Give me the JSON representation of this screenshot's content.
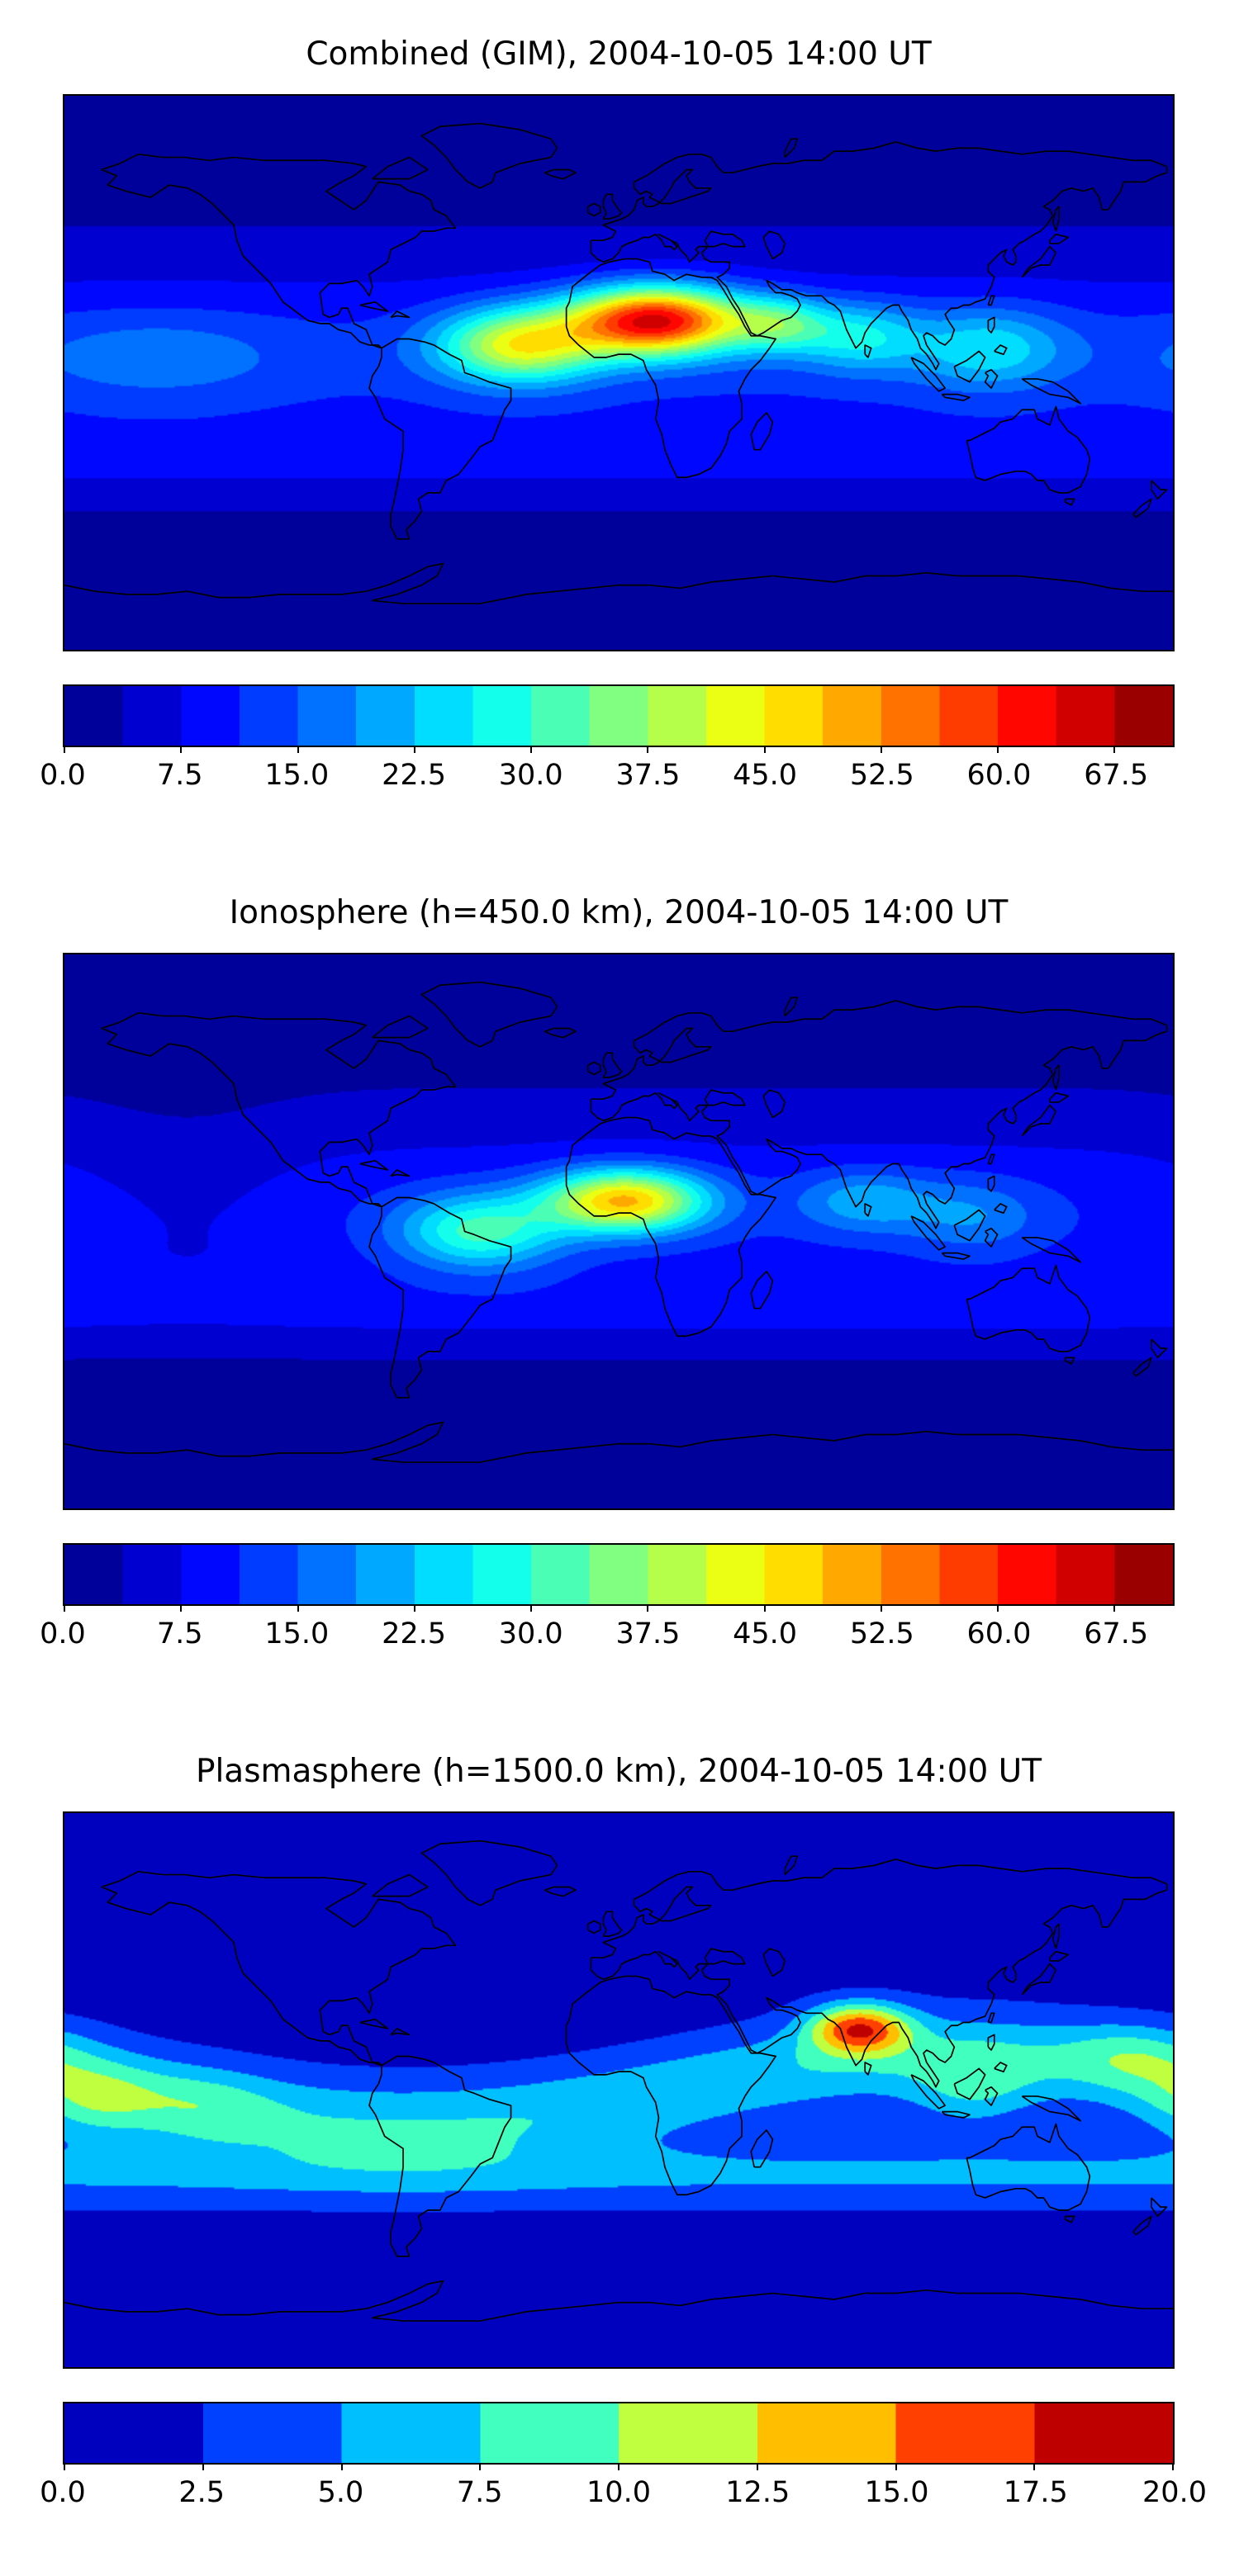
{
  "figure": {
    "background": "#ffffff",
    "text_color": "#000000"
  },
  "chart_data": [
    {
      "type": "heatmap",
      "title": "Combined (GIM), 2004-10-05 14:00 UT",
      "projection": "equirectangular",
      "extent": {
        "lon": [
          -180,
          180
        ],
        "lat": [
          -90,
          90
        ]
      },
      "colormap": "jet",
      "vmin": 0,
      "vmax": 71.25,
      "level_step": 3.75,
      "n_levels": 19,
      "colorbar_tick_values": [
        0,
        7.5,
        15,
        22.5,
        30,
        37.5,
        45,
        52.5,
        60,
        67.5
      ],
      "colorbar_tick_labels": [
        "0.0",
        "7.5",
        "15.0",
        "22.5",
        "30.0",
        "37.5",
        "45.0",
        "52.5",
        "60.0",
        "67.5"
      ],
      "peak": {
        "value_estimate": 66,
        "lon": 12,
        "lat": 17,
        "note": "dark-red TEC maximum over North Africa"
      },
      "field_model": {
        "base": 2.5,
        "bands": [
          {
            "amp": 9.5,
            "lat": 5,
            "sig": 30
          },
          {
            "amp": 4.5,
            "lat": -27,
            "sig": 13
          }
        ],
        "blobs": [
          {
            "lon": 12,
            "lat": 17,
            "amp": 54,
            "slon": 28,
            "slat": 11
          },
          {
            "lon": -32,
            "lat": 9,
            "amp": 32,
            "slon": 26,
            "slat": 12
          },
          {
            "lon": 52,
            "lat": 16,
            "amp": 18,
            "slon": 16,
            "slat": 9
          },
          {
            "lon": 78,
            "lat": 12,
            "amp": 15,
            "slon": 20,
            "slat": 11
          },
          {
            "lon": 120,
            "lat": 8,
            "amp": 14,
            "slon": 25,
            "slat": 13
          },
          {
            "lon": -150,
            "lat": 5,
            "amp": 6,
            "slon": 40,
            "slat": 14
          }
        ]
      }
    },
    {
      "type": "heatmap",
      "title": "Ionosphere  (h=450.0 km), 2004-10-05 14:00 UT",
      "projection": "equirectangular",
      "extent": {
        "lon": [
          -180,
          180
        ],
        "lat": [
          -90,
          90
        ]
      },
      "colormap": "jet",
      "vmin": 0,
      "vmax": 71.25,
      "level_step": 3.75,
      "n_levels": 19,
      "colorbar_tick_values": [
        0,
        7.5,
        15,
        22.5,
        30,
        37.5,
        45,
        52.5,
        60,
        67.5
      ],
      "colorbar_tick_labels": [
        "0.0",
        "7.5",
        "15.0",
        "22.5",
        "30.0",
        "37.5",
        "45.0",
        "52.5",
        "60.0",
        "67.5"
      ],
      "peak": {
        "value_estimate": 50,
        "lon": 2,
        "lat": 10,
        "note": "yellow-orange maximum over West Africa / Gulf of Guinea"
      },
      "field_model": {
        "base": 2.2,
        "bands": [
          {
            "amp": 8.5,
            "lat": 5,
            "sig": 32
          },
          {
            "amp": 4.0,
            "lat": -25,
            "sig": 12
          }
        ],
        "blobs": [
          {
            "lon": 2,
            "lat": 10,
            "amp": 39,
            "slon": 26,
            "slat": 10
          },
          {
            "lon": -45,
            "lat": 0,
            "amp": 21,
            "slon": 26,
            "slat": 12
          },
          {
            "lon": 80,
            "lat": 10,
            "amp": 11,
            "slon": 22,
            "slat": 10
          },
          {
            "lon": 115,
            "lat": 5,
            "amp": 8,
            "slon": 22,
            "slat": 12
          },
          {
            "lon": -140,
            "lat": 10,
            "amp": -3.5,
            "slon": 40,
            "slat": 30
          }
        ]
      }
    },
    {
      "type": "heatmap",
      "title": "Plasmasphere (h=1500.0 km), 2004-10-05 14:00 UT",
      "projection": "equirectangular",
      "extent": {
        "lon": [
          -180,
          180
        ],
        "lat": [
          -90,
          90
        ]
      },
      "colormap": "jet",
      "vmin": 0,
      "vmax": 20,
      "level_step": 2.5,
      "n_levels": 8,
      "colorbar_tick_values": [
        0,
        2.5,
        5,
        7.5,
        10,
        12.5,
        15,
        17.5,
        20
      ],
      "colorbar_tick_labels": [
        "0.0",
        "2.5",
        "5.0",
        "7.5",
        "10.0",
        "12.5",
        "15.0",
        "17.5",
        "20.0"
      ],
      "peak": {
        "value_estimate": 18,
        "lon": 78,
        "lat": 20,
        "note": "small red maximum over India"
      },
      "field_model": {
        "base": 1.2,
        "bands": [
          {
            "amp": 6.0,
            "lat": 0,
            "sig": 15,
            "tilt_amp": 11,
            "tilt_phase": 110
          },
          {
            "amp": 4.2,
            "lat": -27,
            "sig": 11
          }
        ],
        "blobs": [
          {
            "lon": 78,
            "lat": 20,
            "amp": 13.5,
            "slon": 16,
            "slat": 8
          },
          {
            "lon": 115,
            "lat": 0,
            "amp": 4,
            "slon": 20,
            "slat": 13
          },
          {
            "lon": 168,
            "lat": 12,
            "amp": 3.5,
            "slon": 22,
            "slat": 10
          },
          {
            "lon": -170,
            "lat": -4,
            "amp": 4.2,
            "slon": 20,
            "slat": 12
          },
          {
            "lon": -135,
            "lat": -6,
            "amp": 2.5,
            "slon": 22,
            "slat": 12
          }
        ]
      }
    }
  ]
}
